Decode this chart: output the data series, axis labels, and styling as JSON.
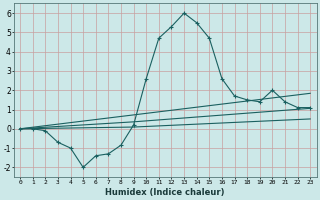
{
  "xlabel": "Humidex (Indice chaleur)",
  "bg_color": "#cce8e8",
  "grid_color": "#c8a0a0",
  "line_color": "#1a6060",
  "x_data": [
    0,
    1,
    2,
    3,
    4,
    5,
    6,
    7,
    8,
    9,
    10,
    11,
    12,
    13,
    14,
    15,
    16,
    17,
    18,
    19,
    20,
    21,
    22,
    23
  ],
  "y_main": [
    0.0,
    0.0,
    -0.1,
    -0.7,
    -1.0,
    -2.0,
    -1.4,
    -1.3,
    -0.85,
    0.2,
    2.6,
    4.7,
    5.3,
    6.0,
    5.5,
    4.7,
    2.6,
    1.7,
    1.5,
    1.4,
    2.0,
    1.4,
    1.1,
    1.1
  ],
  "y_upper": [
    0.0,
    0.08,
    0.16,
    0.24,
    0.32,
    0.4,
    0.48,
    0.56,
    0.64,
    0.72,
    0.8,
    0.88,
    0.96,
    1.04,
    1.12,
    1.2,
    1.28,
    1.36,
    1.44,
    1.52,
    1.6,
    1.68,
    1.76,
    1.84
  ],
  "y_mid": [
    0.0,
    0.04,
    0.08,
    0.12,
    0.16,
    0.2,
    0.24,
    0.28,
    0.32,
    0.36,
    0.41,
    0.46,
    0.51,
    0.56,
    0.61,
    0.66,
    0.71,
    0.76,
    0.81,
    0.86,
    0.91,
    0.96,
    1.01,
    1.06
  ],
  "y_lower": [
    0.0,
    0.01,
    0.02,
    0.03,
    0.04,
    0.05,
    0.06,
    0.07,
    0.08,
    0.09,
    0.12,
    0.15,
    0.18,
    0.21,
    0.24,
    0.27,
    0.3,
    0.33,
    0.36,
    0.39,
    0.42,
    0.45,
    0.48,
    0.51
  ],
  "xlim": [
    -0.5,
    23.5
  ],
  "ylim": [
    -2.5,
    6.5
  ],
  "yticks": [
    -2,
    -1,
    0,
    1,
    2,
    3,
    4,
    5,
    6
  ],
  "xticks": [
    0,
    1,
    2,
    3,
    4,
    5,
    6,
    7,
    8,
    9,
    10,
    11,
    12,
    13,
    14,
    15,
    16,
    17,
    18,
    19,
    20,
    21,
    22,
    23
  ]
}
